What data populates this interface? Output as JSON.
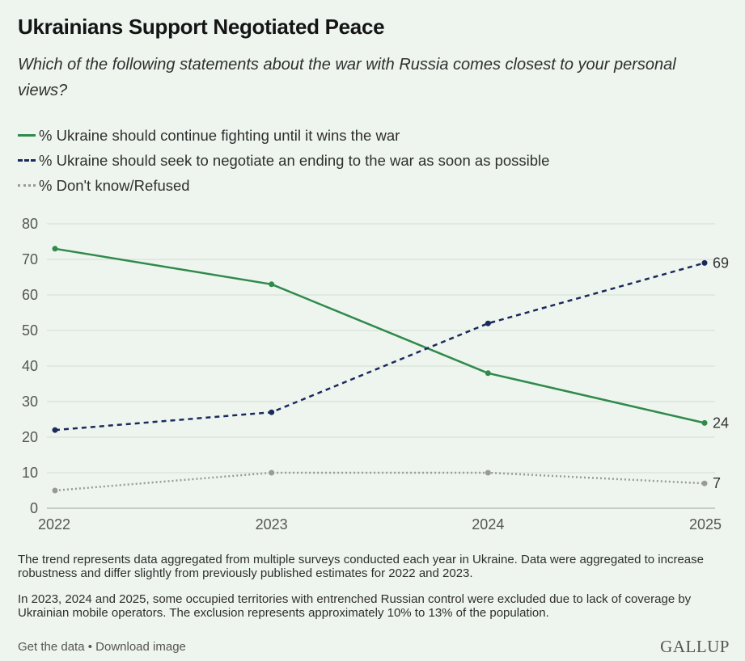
{
  "header": {
    "title": "Ukrainians Support Negotiated Peace",
    "subtitle": "Which of the following statements about the war with Russia comes closest to your personal views?"
  },
  "legend": [
    {
      "label": "% Ukraine should continue fighting until it wins the war",
      "style": "solid",
      "color": "#2f8a4b"
    },
    {
      "label": "% Ukraine should seek to negotiate an ending to the war as soon as possible",
      "style": "dashed",
      "color": "#1b2a5c"
    },
    {
      "label": "% Don't know/Refused",
      "style": "dotted",
      "color": "#9a9a9a"
    }
  ],
  "chart_data": {
    "type": "line",
    "x": [
      "2022",
      "2023",
      "2024",
      "2025"
    ],
    "ylim": [
      0,
      80
    ],
    "yticks": [
      0,
      10,
      20,
      30,
      40,
      50,
      60,
      70,
      80
    ],
    "grid": true,
    "series": [
      {
        "name": "% Ukraine should continue fighting until it wins the war",
        "values": [
          73,
          63,
          38,
          24
        ],
        "color": "#2f8a4b",
        "dash": "solid",
        "end_label": "24"
      },
      {
        "name": "% Ukraine should seek to negotiate an ending to the war as soon as possible",
        "values": [
          22,
          27,
          52,
          69
        ],
        "color": "#1b2a5c",
        "dash": "dashed",
        "end_label": "69"
      },
      {
        "name": "% Don't know/Refused",
        "values": [
          5,
          10,
          10,
          7
        ],
        "color": "#9a9a9a",
        "dash": "dotted",
        "end_label": "7"
      }
    ]
  },
  "notes": [
    "The trend represents data aggregated from multiple surveys conducted each year in Ukraine. Data were aggregated to increase robustness and differ slightly from previously published estimates for 2022 and 2023.",
    "In 2023, 2024 and 2025, some occupied territories with entrenched Russian control were excluded due to lack of coverage by Ukrainian mobile operators. The exclusion represents approximately 10% to 13% of the population."
  ],
  "footer": {
    "get_data": "Get the data",
    "separator": " • ",
    "download": "Download image",
    "brand": "GALLUP"
  }
}
